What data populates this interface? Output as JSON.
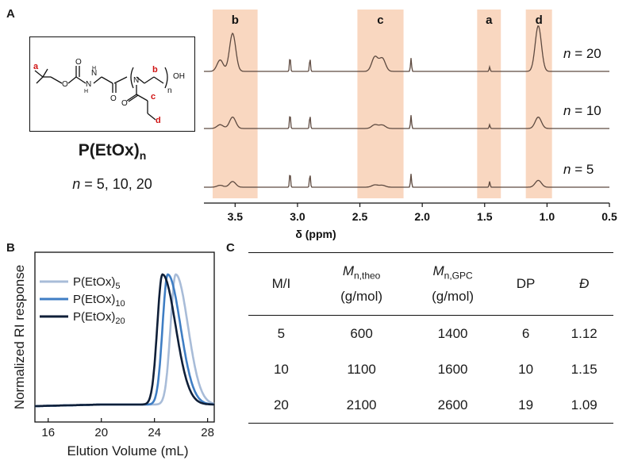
{
  "panels": {
    "a": "A",
    "b": "B",
    "c": "C"
  },
  "polymer": {
    "name": "P(EtOx)",
    "sub": "n",
    "n_prefix": "n",
    "n_values": " = 5, 10, 20"
  },
  "structure": {
    "labels": [
      "a",
      "b",
      "c",
      "d"
    ],
    "n_sub": "n",
    "oh": "OH"
  },
  "chart_data": [
    {
      "type": "line",
      "xlabel": "δ (ppm)",
      "xlim": [
        3.75,
        0.5
      ],
      "x_ticks": [
        "3.5",
        "3.0",
        "2.5",
        "2.0",
        "1.5",
        "1.0",
        "0.5"
      ],
      "x_tick_values": [
        3.5,
        3.0,
        2.5,
        2.0,
        1.5,
        1.0,
        0.5
      ],
      "highlight_regions": [
        {
          "label": "b",
          "from": 3.68,
          "to": 3.32
        },
        {
          "label": "c",
          "from": 2.52,
          "to": 2.15
        },
        {
          "label": "a",
          "from": 1.56,
          "to": 1.37
        },
        {
          "label": "d",
          "from": 1.17,
          "to": 0.96
        }
      ],
      "series": [
        {
          "name": "n = 20",
          "n_prefix": "n",
          "n_value": " = 20"
        },
        {
          "name": "n = 10",
          "n_prefix": "n",
          "n_value": " = 10"
        },
        {
          "name": "n = 5",
          "n_prefix": "n",
          "n_value": " = 5"
        }
      ],
      "peaks": [
        {
          "shift": 3.52,
          "heights": [
            1.0,
            0.3,
            0.15
          ]
        },
        {
          "shift": 3.62,
          "heights": [
            0.3,
            0.1,
            0.05
          ]
        },
        {
          "shift": 2.38,
          "heights": [
            0.38,
            0.1,
            0.06
          ]
        },
        {
          "shift": 2.32,
          "heights": [
            0.34,
            0.09,
            0.05
          ]
        },
        {
          "shift": 3.06,
          "heights": [
            0.4,
            0.4,
            0.4
          ]
        },
        {
          "shift": 2.9,
          "heights": [
            0.35,
            0.35,
            0.35
          ]
        },
        {
          "shift": 2.09,
          "heights": [
            0.35,
            0.35,
            0.35
          ]
        },
        {
          "shift": 1.46,
          "heights": [
            0.12,
            0.1,
            0.15
          ]
        },
        {
          "shift": 1.07,
          "heights": [
            1.2,
            0.3,
            0.18
          ]
        }
      ]
    },
    {
      "type": "line",
      "xlabel": "Elution Volume (mL)",
      "ylabel": "Normalized RI response",
      "xlim": [
        15,
        28.5
      ],
      "x_ticks": [
        "16",
        "20",
        "24",
        "28"
      ],
      "x_tick_values": [
        16,
        20,
        24,
        28
      ],
      "series": [
        {
          "name": "P(EtOx)",
          "sub": "5",
          "peak": 25.6,
          "color": "#a8bcd8"
        },
        {
          "name": "P(EtOx)",
          "sub": "10",
          "peak": 25.0,
          "color": "#3f7ec4"
        },
        {
          "name": "P(EtOx)",
          "sub": "20",
          "peak": 24.6,
          "color": "#0f1f38"
        }
      ]
    },
    {
      "type": "table",
      "columns": [
        {
          "main": "M/I"
        },
        {
          "main": "M",
          "sub": "n,theo",
          "unit": "(g/mol)"
        },
        {
          "main": "M",
          "sub": "n,GPC",
          "unit": "(g/mol)"
        },
        {
          "main": "DP"
        },
        {
          "main": "Đ"
        }
      ],
      "rows": [
        [
          "5",
          "600",
          "1400",
          "6",
          "1.12"
        ],
        [
          "10",
          "1100",
          "1600",
          "10",
          "1.15"
        ],
        [
          "20",
          "2100",
          "2600",
          "19",
          "1.09"
        ]
      ]
    }
  ],
  "colors": {
    "highlight": "#f9d7c0",
    "spectrum": "#5e4a40",
    "baseline": "#111111",
    "label_red": "#d01414"
  }
}
